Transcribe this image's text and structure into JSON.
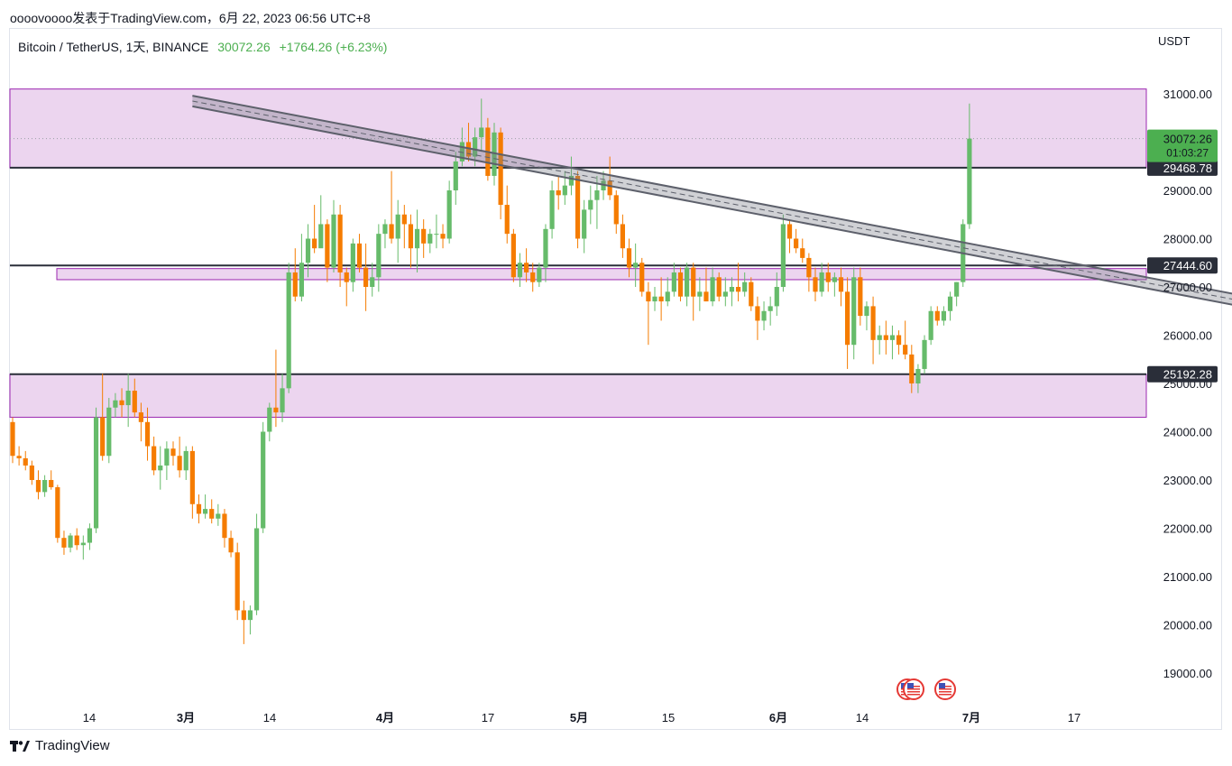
{
  "caption": "oooovoooo发表于TradingView.com，6月 22, 2023 06:56 UTC+8",
  "legend": {
    "symbol": "Bitcoin / TetherUS, 1天, BINANCE",
    "price": "30072.26",
    "change": "+1764.26 (+6.23%)"
  },
  "currency": "USDT",
  "footer": {
    "brand": "TradingView"
  },
  "colors": {
    "up": "#66bb6a",
    "down": "#f57c00",
    "zone_fill": "#ecd5ef",
    "zone_line": "#9c27b0",
    "channel": "#5d606b"
  },
  "chart_data": {
    "type": "candlestick",
    "y_range": [
      18300,
      31900
    ],
    "y_ticks": [
      "31000.00",
      "30000.00",
      "29000.00",
      "28000.00",
      "27000.00",
      "26000.00",
      "25000.00",
      "24000.00",
      "23000.00",
      "22000.00",
      "21000.00",
      "20000.00",
      "19000.00"
    ],
    "x_ticks": [
      "14",
      "3月",
      "14",
      "4月",
      "17",
      "5月",
      "15",
      "6月",
      "14",
      "7月",
      "17"
    ],
    "price_labels": {
      "last_price": "30072.26",
      "countdown": "01:03:27",
      "level_1": "29468.78",
      "level_2": "27444.60",
      "level_3": "25192.28"
    },
    "zones": [
      {
        "from": 29468.78,
        "to": 31100
      },
      {
        "from": 27150,
        "to": 27380
      },
      {
        "from": 24300,
        "to": 25192.28
      }
    ],
    "horizontal_lines": [
      29468.78,
      27444.6,
      25192.28
    ],
    "candles": [
      [
        24200,
        24300,
        23350,
        23500
      ],
      [
        23500,
        23700,
        23300,
        23450
      ],
      [
        23450,
        23600,
        23200,
        23300
      ],
      [
        23300,
        23400,
        22900,
        23000
      ],
      [
        23000,
        23200,
        22600,
        22750
      ],
      [
        22750,
        23100,
        22650,
        23000
      ],
      [
        23000,
        23200,
        22800,
        22850
      ],
      [
        22850,
        22900,
        21700,
        21800
      ],
      [
        21800,
        21950,
        21450,
        21600
      ],
      [
        21600,
        21900,
        21500,
        21850
      ],
      [
        21850,
        22000,
        21550,
        21650
      ],
      [
        21650,
        21850,
        21350,
        21700
      ],
      [
        21700,
        22100,
        21550,
        22000
      ],
      [
        22000,
        24500,
        21900,
        24300
      ],
      [
        24300,
        25200,
        23400,
        23500
      ],
      [
        23500,
        24700,
        23350,
        24500
      ],
      [
        24500,
        24800,
        24300,
        24650
      ],
      [
        24650,
        24900,
        24300,
        24550
      ],
      [
        24550,
        25200,
        24100,
        24850
      ],
      [
        24850,
        25100,
        24300,
        24400
      ],
      [
        24400,
        24600,
        23800,
        24200
      ],
      [
        24200,
        24500,
        23400,
        23700
      ],
      [
        23700,
        23900,
        23100,
        23200
      ],
      [
        23200,
        23700,
        22800,
        23300
      ],
      [
        23300,
        23800,
        23000,
        23650
      ],
      [
        23650,
        23800,
        23300,
        23500
      ],
      [
        23500,
        23900,
        23050,
        23200
      ],
      [
        23200,
        23700,
        23000,
        23600
      ],
      [
        23600,
        23700,
        22200,
        22500
      ],
      [
        22500,
        22700,
        22100,
        22300
      ],
      [
        22300,
        22700,
        22200,
        22400
      ],
      [
        22400,
        22600,
        22100,
        22200
      ],
      [
        22200,
        22500,
        22050,
        22300
      ],
      [
        22300,
        22400,
        21600,
        21800
      ],
      [
        21800,
        21950,
        21400,
        21500
      ],
      [
        21500,
        21700,
        20100,
        20300
      ],
      [
        20300,
        20500,
        19600,
        20100
      ],
      [
        20100,
        20400,
        19800,
        20300
      ],
      [
        20300,
        22300,
        20200,
        22000
      ],
      [
        22000,
        24200,
        21900,
        24000
      ],
      [
        24000,
        24600,
        23800,
        24500
      ],
      [
        24500,
        25700,
        24100,
        24400
      ],
      [
        24400,
        25200,
        24200,
        24900
      ],
      [
        24900,
        27500,
        24800,
        27300
      ],
      [
        27300,
        27800,
        26700,
        26800
      ],
      [
        26800,
        28100,
        26700,
        27500
      ],
      [
        27500,
        28300,
        27200,
        28000
      ],
      [
        28000,
        28700,
        27700,
        27800
      ],
      [
        27800,
        28900,
        27900,
        28300
      ],
      [
        28300,
        28400,
        27100,
        27400
      ],
      [
        27400,
        28800,
        27300,
        28500
      ],
      [
        28500,
        28700,
        27000,
        27300
      ],
      [
        27300,
        27400,
        26600,
        27100
      ],
      [
        27100,
        28000,
        26900,
        27900
      ],
      [
        27900,
        28100,
        27300,
        27400
      ],
      [
        27400,
        27900,
        26500,
        27000
      ],
      [
        27000,
        27500,
        26800,
        27200
      ],
      [
        27200,
        28300,
        26900,
        28100
      ],
      [
        28100,
        28400,
        27800,
        28300
      ],
      [
        28300,
        29400,
        27900,
        28000
      ],
      [
        28000,
        28800,
        27500,
        28500
      ],
      [
        28500,
        28700,
        27800,
        28300
      ],
      [
        28300,
        28500,
        27400,
        27800
      ],
      [
        27800,
        28600,
        27300,
        28200
      ],
      [
        28200,
        28400,
        27600,
        27900
      ],
      [
        27900,
        28200,
        27700,
        28100
      ],
      [
        28100,
        28500,
        27800,
        28100
      ],
      [
        28100,
        28300,
        27800,
        28000
      ],
      [
        28000,
        29200,
        27900,
        29000
      ],
      [
        29000,
        29800,
        28700,
        29600
      ],
      [
        29600,
        30300,
        29500,
        30000
      ],
      [
        30000,
        30400,
        29600,
        29700
      ],
      [
        29700,
        30300,
        29500,
        30100
      ],
      [
        30100,
        30900,
        29800,
        30300
      ],
      [
        30300,
        30500,
        29200,
        29300
      ],
      [
        29300,
        30400,
        29100,
        30200
      ],
      [
        30200,
        30300,
        28400,
        28700
      ],
      [
        28700,
        29100,
        27900,
        28100
      ],
      [
        28100,
        28200,
        27100,
        27200
      ],
      [
        27200,
        27700,
        27000,
        27500
      ],
      [
        27500,
        27800,
        27100,
        27300
      ],
      [
        27300,
        27500,
        26900,
        27100
      ],
      [
        27100,
        27500,
        27000,
        27400
      ],
      [
        27400,
        28300,
        27100,
        28200
      ],
      [
        28200,
        29200,
        28000,
        29000
      ],
      [
        29000,
        29300,
        28600,
        28900
      ],
      [
        28900,
        29400,
        28700,
        29100
      ],
      [
        29100,
        29700,
        28900,
        29300
      ],
      [
        29300,
        29400,
        27800,
        28000
      ],
      [
        28000,
        28800,
        27700,
        28600
      ],
      [
        28600,
        29100,
        28300,
        28800
      ],
      [
        28800,
        29300,
        28200,
        29000
      ],
      [
        29000,
        29400,
        28800,
        29200
      ],
      [
        29200,
        29700,
        28800,
        28900
      ],
      [
        28900,
        29000,
        28100,
        28300
      ],
      [
        28300,
        28500,
        27600,
        27800
      ],
      [
        27800,
        28000,
        27200,
        27400
      ],
      [
        27400,
        27900,
        27000,
        27500
      ],
      [
        27500,
        27600,
        26800,
        26900
      ],
      [
        26900,
        27100,
        25800,
        26700
      ],
      [
        26700,
        27000,
        26500,
        26800
      ],
      [
        26800,
        27200,
        26300,
        26700
      ],
      [
        26700,
        27200,
        26600,
        26900
      ],
      [
        26900,
        27500,
        26800,
        27300
      ],
      [
        27300,
        27400,
        26700,
        26800
      ],
      [
        26800,
        27500,
        26600,
        27400
      ],
      [
        27400,
        27500,
        26300,
        26800
      ],
      [
        26800,
        27200,
        26500,
        26900
      ],
      [
        26900,
        27400,
        26700,
        26700
      ],
      [
        26700,
        27400,
        26600,
        27200
      ],
      [
        27200,
        27300,
        26700,
        26800
      ],
      [
        26800,
        27200,
        26600,
        26900
      ],
      [
        26900,
        27200,
        26600,
        27000
      ],
      [
        27000,
        27500,
        26700,
        26900
      ],
      [
        26900,
        27300,
        26800,
        27100
      ],
      [
        27100,
        27200,
        26500,
        26600
      ],
      [
        26600,
        26800,
        25900,
        26300
      ],
      [
        26300,
        26700,
        26100,
        26500
      ],
      [
        26500,
        26800,
        26200,
        26600
      ],
      [
        26600,
        27300,
        26400,
        27000
      ],
      [
        27000,
        28500,
        26900,
        28300
      ],
      [
        28300,
        28400,
        27700,
        28000
      ],
      [
        28000,
        28200,
        27700,
        27800
      ],
      [
        27800,
        28000,
        27500,
        27600
      ],
      [
        27600,
        27700,
        26900,
        27200
      ],
      [
        27200,
        27400,
        26700,
        26900
      ],
      [
        26900,
        27500,
        26800,
        27300
      ],
      [
        27300,
        27500,
        26900,
        27100
      ],
      [
        27100,
        27300,
        26800,
        27200
      ],
      [
        27200,
        27400,
        26600,
        26900
      ],
      [
        26900,
        27200,
        25300,
        25800
      ],
      [
        25800,
        27400,
        25500,
        27200
      ],
      [
        27200,
        27400,
        26200,
        26400
      ],
      [
        26400,
        26700,
        26100,
        26600
      ],
      [
        26600,
        26800,
        25400,
        25900
      ],
      [
        25900,
        26200,
        25600,
        26000
      ],
      [
        26000,
        26300,
        25600,
        25900
      ],
      [
        25900,
        26200,
        25500,
        26000
      ],
      [
        26000,
        26100,
        25600,
        25800
      ],
      [
        25800,
        26300,
        25500,
        25600
      ],
      [
        25600,
        25800,
        24800,
        25000
      ],
      [
        25000,
        25400,
        24800,
        25300
      ],
      [
        25300,
        26000,
        25200,
        25900
      ],
      [
        25900,
        26600,
        25800,
        26500
      ],
      [
        26500,
        26600,
        26200,
        26300
      ],
      [
        26300,
        26600,
        26200,
        26500
      ],
      [
        26500,
        26900,
        26300,
        26800
      ],
      [
        26800,
        27100,
        26600,
        27100
      ],
      [
        27100,
        28400,
        27000,
        28300
      ],
      [
        28300,
        30800,
        28200,
        30072
      ]
    ],
    "trend_channel": {
      "upper": {
        "from": [
          28,
          30960
        ],
        "to": [
          205,
          26480
        ]
      },
      "lower": {
        "from": [
          28,
          30740
        ],
        "to": [
          205,
          26250
        ]
      }
    }
  }
}
